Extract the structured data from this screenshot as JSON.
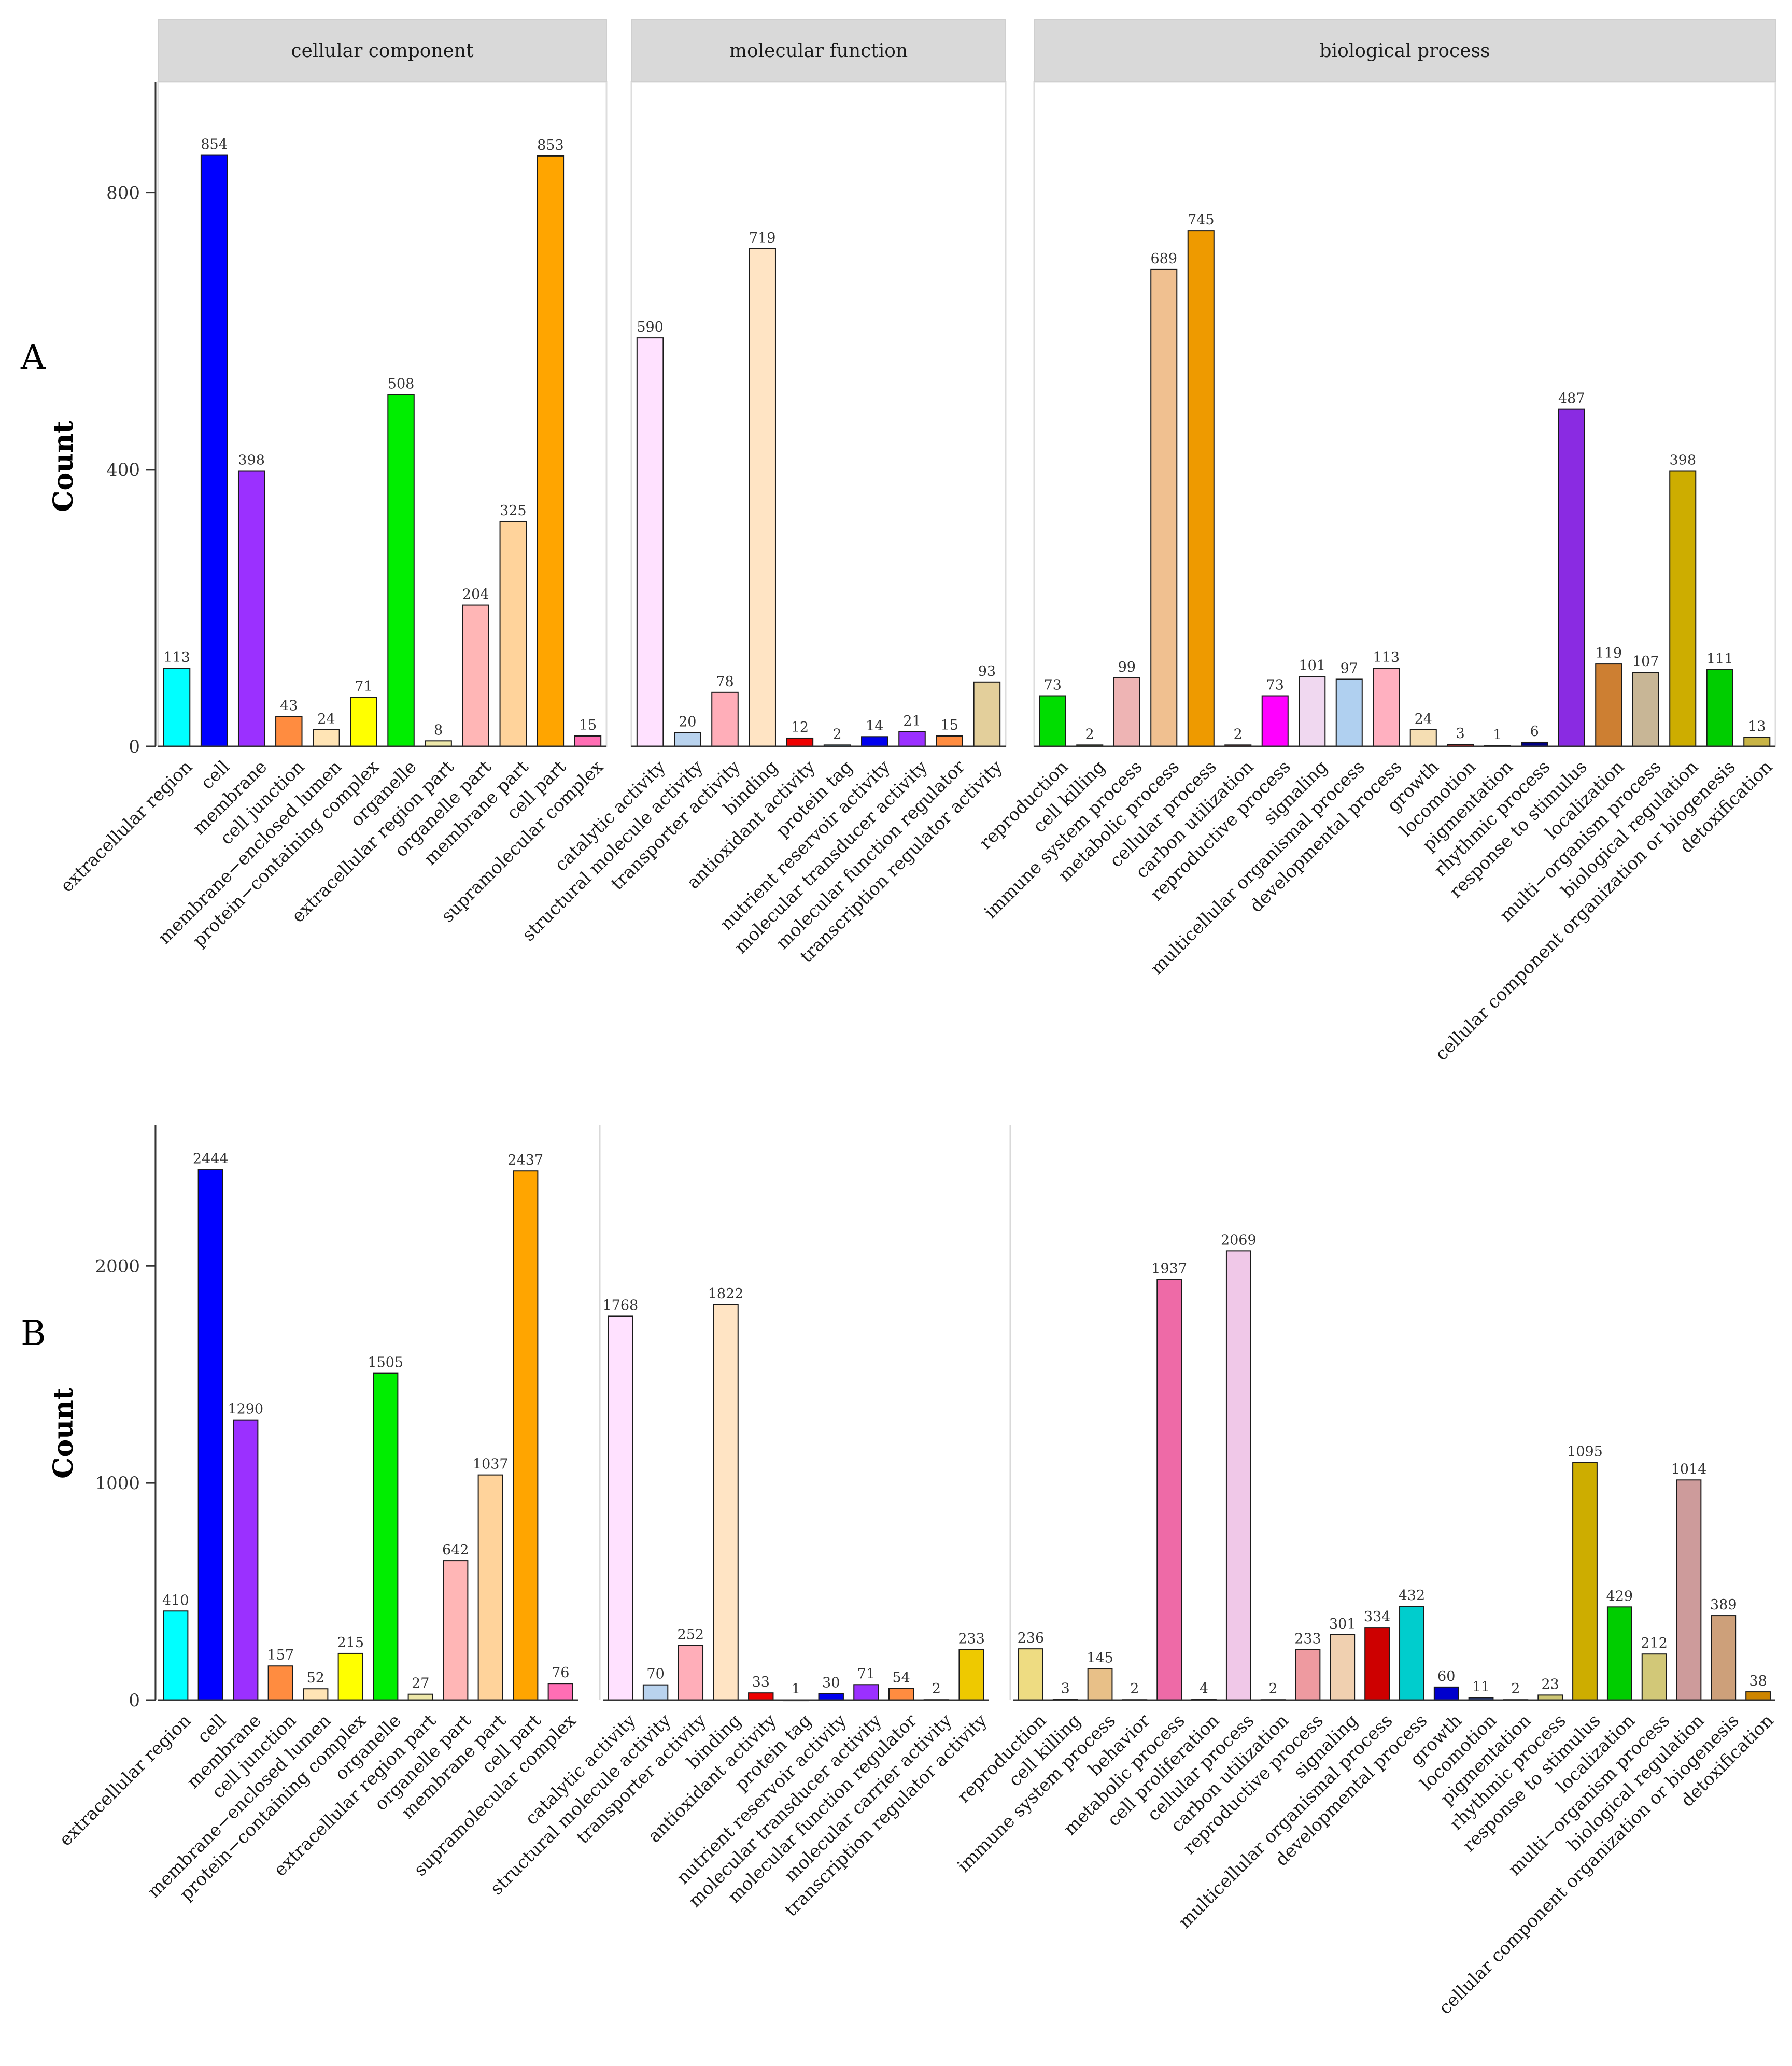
{
  "chart_data": [
    {
      "panel": "A",
      "type": "bar",
      "ylabel": "Count",
      "ylim": [
        0,
        960
      ],
      "yticks": [
        0,
        400,
        800
      ],
      "facet_strips": true,
      "facets": [
        {
          "title": "cellular component",
          "categories": [
            "extracellular region",
            "cell",
            "membrane",
            "cell junction",
            "membrane−enclosed lumen",
            "protein−containing complex",
            "organelle",
            "extracellular region part",
            "organelle part",
            "membrane part",
            "cell part",
            "supramolecular complex"
          ],
          "values": [
            113,
            854,
            398,
            43,
            24,
            71,
            508,
            8,
            204,
            325,
            853,
            15
          ],
          "value_labels": [
            "113",
            "854",
            "398",
            "43",
            "24",
            "71",
            "508",
            "8",
            "204",
            "325",
            "853",
            "15"
          ],
          "colors": [
            "#00ffff",
            "#0000ff",
            "#9b30ff",
            "#ff8c40",
            "#ffe4b5",
            "#ffff00",
            "#00ee00",
            "#eee8aa",
            "#ffb6b6",
            "#ffd39b",
            "#ffa500",
            "#ff6eb4"
          ]
        },
        {
          "title": "molecular function",
          "categories": [
            "catalytic activity",
            "structural molecule activity",
            "transporter activity",
            "binding",
            "antioxidant activity",
            "protein tag",
            "nutrient reservoir activity",
            "molecular transducer activity",
            "molecular function regulator",
            "transcription regulator activity"
          ],
          "values": [
            590,
            20,
            78,
            719,
            12,
            2,
            14,
            21,
            15,
            93
          ],
          "value_labels": [
            "590",
            "20",
            "78",
            "719",
            "12",
            "2",
            "14",
            "21",
            "15",
            "93"
          ],
          "colors": [
            "#ffe1ff",
            "#b9d3ee",
            "#ffaeb9",
            "#ffe4c4",
            "#ee0000",
            "#87ceeb",
            "#0000ee",
            "#9b30ff",
            "#ff8c40",
            "#e3cf9b"
          ]
        },
        {
          "title": "biological process",
          "categories": [
            "reproduction",
            "cell killing",
            "immune system process",
            "metabolic process",
            "cellular process",
            "carbon utilization",
            "reproductive process",
            "signaling",
            "multicellular organismal process",
            "developmental process",
            "growth",
            "locomotion",
            "pigmentation",
            "rhythmic process",
            "response to stimulus",
            "localization",
            "multi−organism process",
            "biological regulation",
            "cellular component organization or biogenesis",
            "detoxification"
          ],
          "values": [
            73,
            2,
            99,
            689,
            745,
            2,
            73,
            101,
            97,
            113,
            24,
            3,
            1,
            6,
            487,
            119,
            107,
            398,
            111,
            13
          ],
          "value_labels": [
            "73",
            "2",
            "99",
            "689",
            "745",
            "2",
            "73",
            "101",
            "97",
            "113",
            "24",
            "3",
            "1",
            "6",
            "487",
            "119",
            "107",
            "398",
            "111",
            "13"
          ],
          "colors": [
            "#00dd00",
            "#556b2f",
            "#eeb4b4",
            "#f0c090",
            "#ee9a00",
            "#8b3a3a",
            "#ff00ff",
            "#f0d8f0",
            "#b0d0f0",
            "#ffb0c0",
            "#f5deb3",
            "#cd2626",
            "#ffc0cb",
            "#000080",
            "#8a2be2",
            "#cd7f32",
            "#c8b696",
            "#cdad00",
            "#00cd00",
            "#c8b446"
          ]
        }
      ]
    },
    {
      "panel": "B",
      "type": "bar",
      "ylabel": "Count",
      "ylim": [
        0,
        2650
      ],
      "yticks": [
        0,
        1000,
        2000
      ],
      "facet_strips": false,
      "facets": [
        {
          "title": "",
          "categories": [
            "extracellular region",
            "cell",
            "membrane",
            "cell junction",
            "membrane−enclosed lumen",
            "protein−containing complex",
            "organelle",
            "extracellular region part",
            "organelle part",
            "membrane part",
            "cell part",
            "supramolecular complex"
          ],
          "values": [
            410,
            2444,
            1290,
            157,
            52,
            215,
            1505,
            27,
            642,
            1037,
            2437,
            76
          ],
          "value_labels": [
            "410",
            "2444",
            "1290",
            "157",
            "52",
            "215",
            "1505",
            "27",
            "642",
            "1037",
            "2437",
            "76"
          ],
          "colors": [
            "#00ffff",
            "#0000ff",
            "#9b30ff",
            "#ff8c40",
            "#ffe4b5",
            "#ffff00",
            "#00ee00",
            "#eee8aa",
            "#ffb6b6",
            "#ffd39b",
            "#ffa500",
            "#ff6eb4"
          ]
        },
        {
          "title": "",
          "categories": [
            "catalytic activity",
            "structural molecule activity",
            "transporter activity",
            "binding",
            "antioxidant activity",
            "protein tag",
            "nutrient reservoir activity",
            "molecular transducer activity",
            "molecular function regulator",
            "molecular carrier activity",
            "transcription regulator activity"
          ],
          "values": [
            1768,
            70,
            252,
            1822,
            33,
            1,
            30,
            71,
            54,
            2,
            233
          ],
          "value_labels": [
            "1768",
            "70",
            "252",
            "1822",
            "33",
            "1",
            "30",
            "71",
            "54",
            "2",
            "233"
          ],
          "colors": [
            "#ffe1ff",
            "#b9d3ee",
            "#ffaeb9",
            "#ffe4c4",
            "#ee0000",
            "#87ceeb",
            "#0000ee",
            "#9b30ff",
            "#ff8c40",
            "#cdcd00",
            "#eec900"
          ]
        },
        {
          "title": "",
          "categories": [
            "reproduction",
            "cell killing",
            "immune system process",
            "behavior",
            "metabolic process",
            "cell proliferation",
            "cellular process",
            "carbon utilization",
            "reproductive process",
            "signaling",
            "multicellular organismal process",
            "developmental process",
            "growth",
            "locomotion",
            "pigmentation",
            "rhythmic process",
            "response to stimulus",
            "localization",
            "multi−organism process",
            "biological regulation",
            "cellular component organization or biogenesis",
            "detoxification"
          ],
          "values": [
            236,
            3,
            145,
            2,
            1937,
            4,
            2069,
            2,
            233,
            301,
            334,
            432,
            60,
            11,
            2,
            23,
            1095,
            429,
            212,
            1014,
            389,
            38
          ],
          "value_labels": [
            "236",
            "3",
            "145",
            "2",
            "1937",
            "4",
            "2069",
            "2",
            "233",
            "301",
            "334",
            "432",
            "60",
            "11",
            "2",
            "23",
            "1095",
            "429",
            "212",
            "1014",
            "389",
            "38"
          ],
          "colors": [
            "#eedc82",
            "#556b2f",
            "#e8c088",
            "#8b7d6b",
            "#ee6aa7",
            "#8b8682",
            "#f0c8e8",
            "#8b3a3a",
            "#ee9aa0",
            "#f0d0b0",
            "#cd0000",
            "#00cdcd",
            "#0000cd",
            "#27408b",
            "#ffc0cb",
            "#cdc673",
            "#cdad00",
            "#00cd00",
            "#d2c878",
            "#cd9b9b",
            "#cda07a",
            "#cd8500"
          ]
        }
      ]
    }
  ],
  "panels": {
    "a": {
      "letter": "A",
      "ylabel": "Count"
    },
    "b": {
      "letter": "B",
      "ylabel": "Count"
    }
  }
}
